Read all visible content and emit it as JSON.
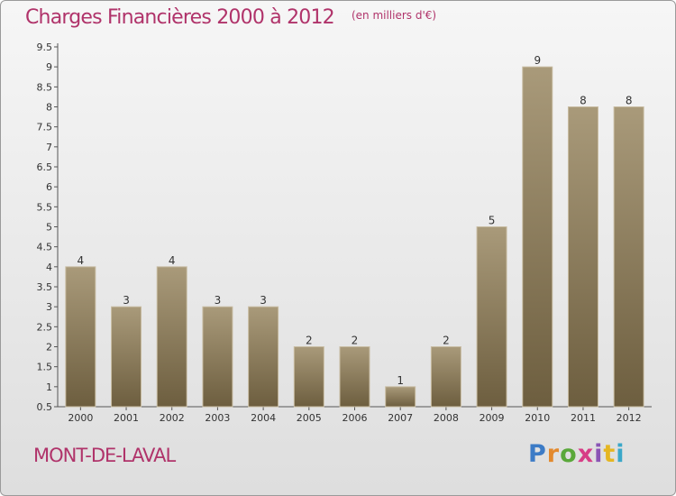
{
  "chart_data": {
    "type": "bar",
    "title": "Charges Financières 2000 à 2012",
    "subtitle": "(en milliers d'€)",
    "categories": [
      "2000",
      "2001",
      "2002",
      "2003",
      "2004",
      "2005",
      "2006",
      "2007",
      "2008",
      "2009",
      "2010",
      "2011",
      "2012"
    ],
    "values": [
      4,
      3,
      4,
      3,
      3,
      2,
      2,
      1,
      2,
      5,
      9,
      8,
      8
    ],
    "data_labels": [
      "4",
      "3",
      "4",
      "3",
      "3",
      "2",
      "2",
      "1",
      "2",
      "5",
      "9",
      "8",
      "8"
    ],
    "ylim": [
      0.5,
      9.5
    ],
    "yticks": [
      "9.5",
      "9",
      "8.5",
      "8",
      "7.5",
      "7",
      "6.5",
      "6",
      "5.5",
      "5",
      "4.5",
      "4",
      "3.5",
      "3",
      "2.5",
      "2",
      "1.5",
      "1",
      "0.5"
    ],
    "grid": false,
    "colors": {
      "bar_top": "#a99a7a",
      "bar_bottom": "#6d5e3f",
      "bar_border": "#c8bca2",
      "title": "#b0336a"
    }
  },
  "commune": "MONT-DE-LAVAL",
  "brand": {
    "letters": [
      "P",
      "r",
      "o",
      "x",
      "i",
      "t",
      "i"
    ],
    "colors": [
      "#3c7bc6",
      "#e3892d",
      "#5aa83a",
      "#d73d86",
      "#8a55b5",
      "#e5b622",
      "#3aa7c9"
    ]
  }
}
